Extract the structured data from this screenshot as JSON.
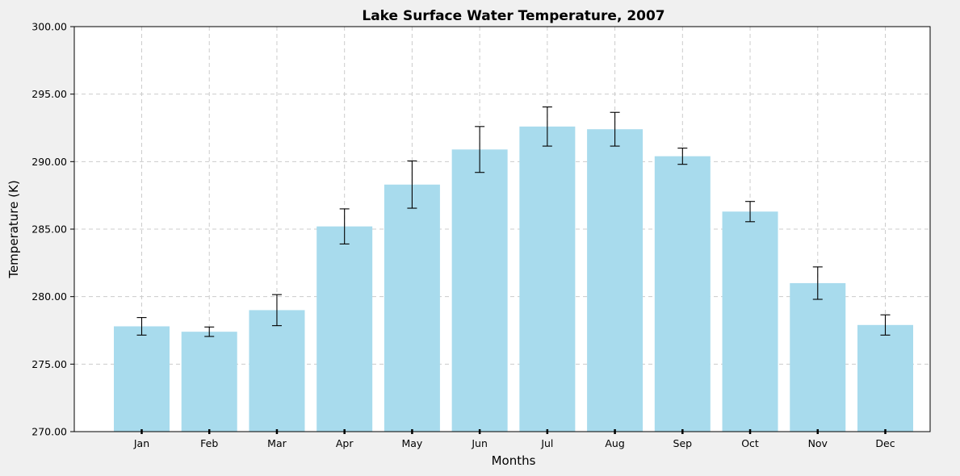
{
  "chart_data": {
    "type": "bar",
    "title": "Lake Surface Water Temperature, 2007",
    "xlabel": "Months",
    "ylabel": "Temperature (K)",
    "categories": [
      "Jan",
      "Feb",
      "Mar",
      "Apr",
      "May",
      "Jun",
      "Jul",
      "Aug",
      "Sep",
      "Oct",
      "Nov",
      "Dec"
    ],
    "values": [
      277.8,
      277.4,
      279.0,
      285.2,
      288.3,
      290.9,
      292.6,
      292.4,
      290.4,
      286.3,
      281.0,
      277.9
    ],
    "errors": [
      0.65,
      0.35,
      1.15,
      1.3,
      1.75,
      1.7,
      1.45,
      1.25,
      0.6,
      0.75,
      1.2,
      0.75
    ],
    "ylim": [
      270,
      300
    ],
    "yticks": [
      "270.00",
      "275.00",
      "280.00",
      "285.00",
      "290.00",
      "295.00",
      "300.00"
    ],
    "grid": true,
    "colors": {
      "bar": "#a8dbed",
      "error": "#000000",
      "background": "#f0f0f0",
      "plot_bg": "#ffffff"
    }
  }
}
